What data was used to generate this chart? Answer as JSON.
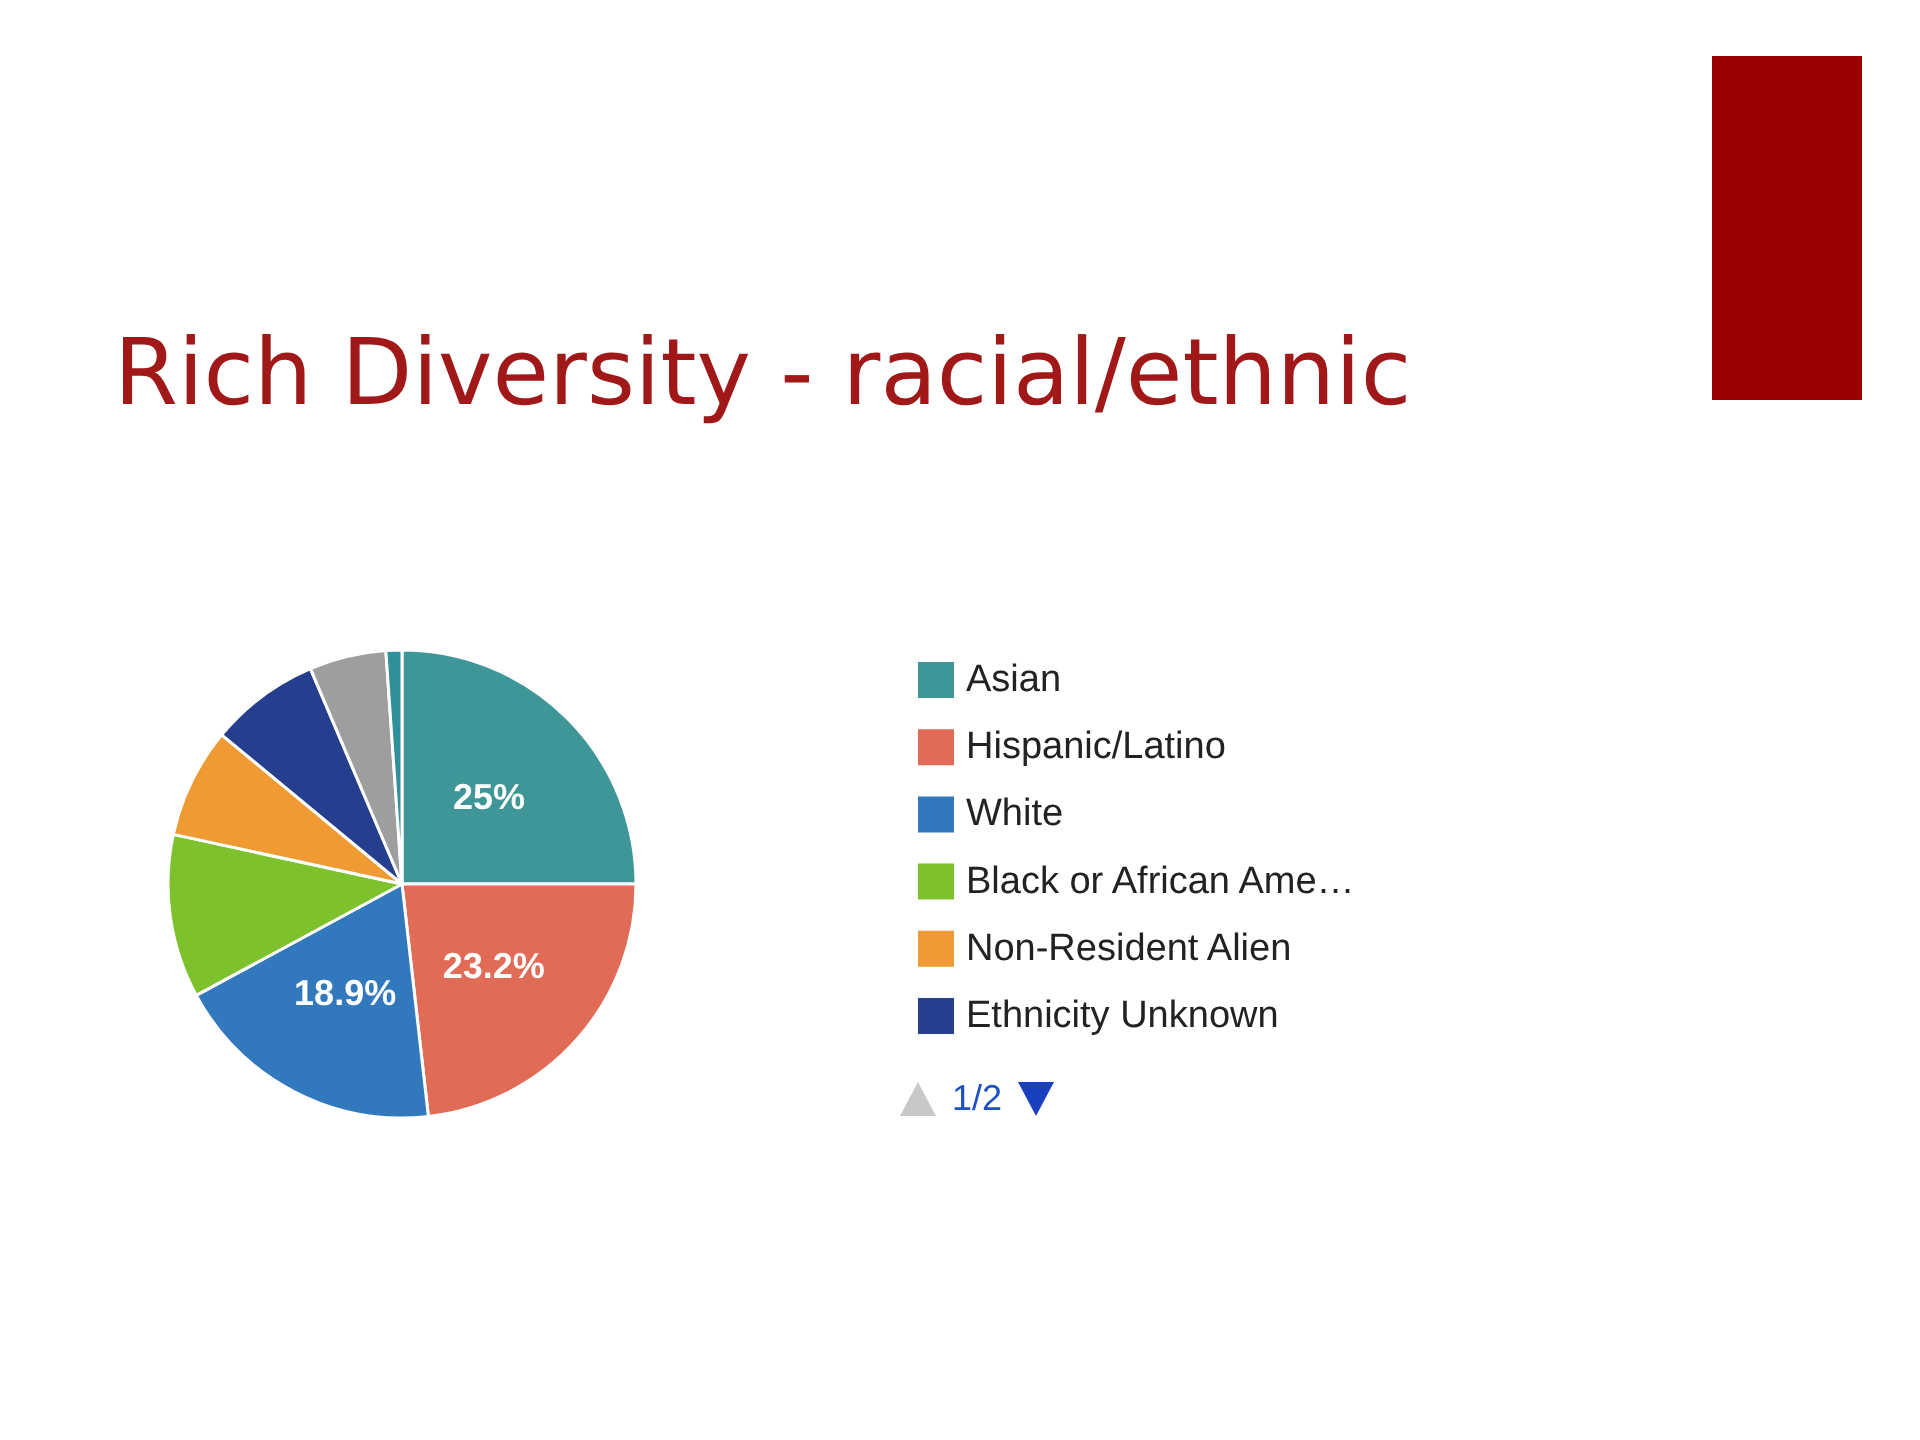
{
  "chart_data": {
    "type": "pie",
    "title": "Rich Diversity - racial/ethnic",
    "categories": [
      "Asian",
      "Hispanic/Latino",
      "White",
      "Black or African Ame…",
      "Non-Resident Alien",
      "Ethnicity Unknown",
      null,
      null
    ],
    "values": [
      25,
      23.2,
      18.9,
      11.3,
      7.6,
      7.6,
      5.3,
      1.1
    ],
    "colors": [
      "#3e9698",
      "#e06b56",
      "#3278bd",
      "#7dc12d",
      "#f09a33",
      "#253f8e",
      "#9e9e9e",
      "#2f8f9a"
    ],
    "value_labels": [
      "25%",
      "23.2%",
      "18.9%",
      null,
      null,
      null,
      null,
      null
    ],
    "legend": "right",
    "annotations": [
      "1/2"
    ]
  }
}
